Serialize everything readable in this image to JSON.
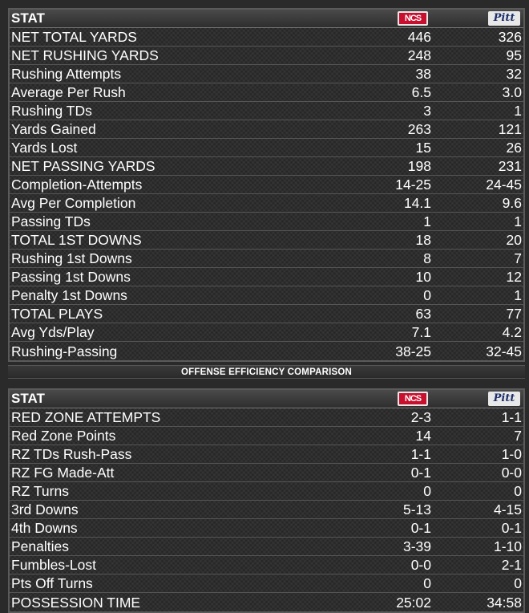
{
  "header": {
    "stat_label": "STAT",
    "team_a_logo_text": "NCS",
    "team_b_logo_text": "Pitt"
  },
  "banner": "OFFENSE EFFICIENCY COMPARISON",
  "offense_rows": [
    {
      "label": "NET TOTAL YARDS",
      "a": "446",
      "b": "326"
    },
    {
      "label": "NET RUSHING YARDS",
      "a": "248",
      "b": "95"
    },
    {
      "label": "Rushing Attempts",
      "a": "38",
      "b": "32"
    },
    {
      "label": "Average Per Rush",
      "a": "6.5",
      "b": "3.0"
    },
    {
      "label": "Rushing TDs",
      "a": "3",
      "b": "1"
    },
    {
      "label": "Yards Gained",
      "a": "263",
      "b": "121"
    },
    {
      "label": "Yards Lost",
      "a": "15",
      "b": "26"
    },
    {
      "label": "NET PASSING YARDS",
      "a": "198",
      "b": "231"
    },
    {
      "label": "Completion-Attempts",
      "a": "14-25",
      "b": "24-45"
    },
    {
      "label": "Avg Per Completion",
      "a": "14.1",
      "b": "9.6"
    },
    {
      "label": "Passing TDs",
      "a": "1",
      "b": "1"
    },
    {
      "label": "TOTAL 1ST DOWNS",
      "a": "18",
      "b": "20"
    },
    {
      "label": "Rushing 1st Downs",
      "a": "8",
      "b": "7"
    },
    {
      "label": "Passing 1st Downs",
      "a": "10",
      "b": "12"
    },
    {
      "label": "Penalty 1st Downs",
      "a": "0",
      "b": "1"
    },
    {
      "label": "TOTAL PLAYS",
      "a": "63",
      "b": "77"
    },
    {
      "label": "Avg Yds/Play",
      "a": "7.1",
      "b": "4.2"
    },
    {
      "label": "Rushing-Passing",
      "a": "38-25",
      "b": "32-45"
    }
  ],
  "efficiency_rows": [
    {
      "label": "RED ZONE ATTEMPTS",
      "a": "2-3",
      "b": "1-1"
    },
    {
      "label": "Red Zone Points",
      "a": "14",
      "b": "7"
    },
    {
      "label": "RZ TDs Rush-Pass",
      "a": "1-1",
      "b": "1-0"
    },
    {
      "label": "RZ FG Made-Att",
      "a": "0-1",
      "b": "0-0"
    },
    {
      "label": "RZ Turns",
      "a": "0",
      "b": "0"
    },
    {
      "label": "3rd Downs",
      "a": "5-13",
      "b": "4-15"
    },
    {
      "label": "4th Downs",
      "a": "0-1",
      "b": "0-1"
    },
    {
      "label": "Penalties",
      "a": "3-39",
      "b": "1-10"
    },
    {
      "label": "Fumbles-Lost",
      "a": "0-0",
      "b": "2-1"
    },
    {
      "label": "Pts Off Turns",
      "a": "0",
      "b": "0"
    },
    {
      "label": "POSSESSION TIME",
      "a": "25:02",
      "b": "34:58"
    }
  ]
}
